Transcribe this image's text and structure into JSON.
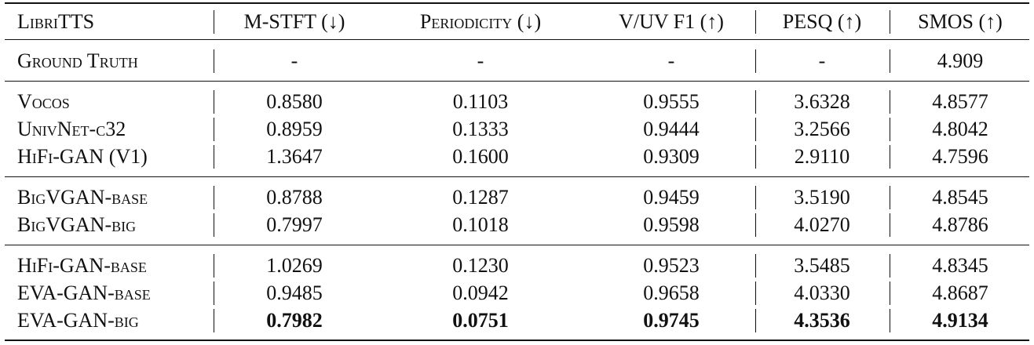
{
  "table": {
    "header": [
      "LibriTTS",
      "M-STFT (↓)",
      "Periodicity (↓)",
      "V/UV F1 (↑)",
      "PESQ (↑)",
      "SMOS (↑)"
    ],
    "groups": [
      {
        "rows": [
          {
            "cells": [
              "Ground Truth",
              "-",
              "-",
              "-",
              "-",
              "4.909"
            ]
          }
        ]
      },
      {
        "rows": [
          {
            "cells": [
              "Vocos",
              "0.8580",
              "0.1103",
              "0.9555",
              "3.6328",
              "4.8577"
            ]
          },
          {
            "cells": [
              "UnivNet-c32",
              "0.8959",
              "0.1333",
              "0.9444",
              "3.2566",
              "4.8042"
            ]
          },
          {
            "cells": [
              "HiFi-GAN (V1)",
              "1.3647",
              "0.1600",
              "0.9309",
              "2.9110",
              "4.7596"
            ]
          }
        ]
      },
      {
        "rows": [
          {
            "cells": [
              "BigVGAN-base",
              "0.8788",
              "0.1287",
              "0.9459",
              "3.5190",
              "4.8545"
            ]
          },
          {
            "cells": [
              "BigVGAN-big",
              "0.7997",
              "0.1018",
              "0.9598",
              "4.0270",
              "4.8786"
            ]
          }
        ]
      },
      {
        "rows": [
          {
            "cells": [
              "HiFi-GAN-base",
              "1.0269",
              "0.1230",
              "0.9523",
              "3.5485",
              "4.8345"
            ]
          },
          {
            "cells": [
              "EVA-GAN-base",
              "0.9485",
              "0.0942",
              "0.9658",
              "4.0330",
              "4.8687"
            ]
          },
          {
            "cells": [
              "EVA-GAN-big",
              "0.7982",
              "0.0751",
              "0.9745",
              "4.3536",
              "4.9134"
            ],
            "bold": true
          }
        ]
      }
    ]
  }
}
